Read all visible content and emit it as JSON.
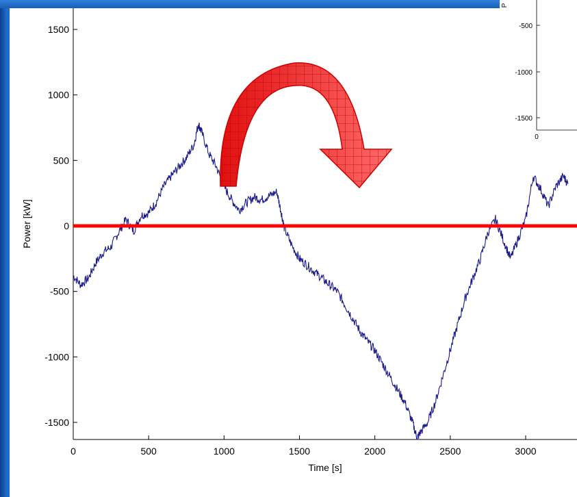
{
  "chart_data": {
    "type": "line",
    "xlabel": "Time [s]",
    "ylabel": "Power [kW]",
    "xlim": [
      0,
      3300
    ],
    "ylim": [
      -1650,
      1650
    ],
    "xticks": [
      0,
      500,
      1000,
      1500,
      2000,
      2500,
      3000
    ],
    "yticks": [
      -1500,
      -1000,
      -500,
      0,
      500,
      1000,
      1500
    ],
    "grid": false,
    "line_color": "#1a1a8c",
    "reference_line": {
      "y": 0,
      "color": "#ff0000"
    },
    "series": [
      {
        "x": [
          0,
          50,
          100,
          150,
          200,
          250,
          300,
          350,
          400,
          450,
          500,
          550,
          600,
          650,
          700,
          750,
          800,
          830,
          850,
          900,
          950,
          1000,
          1050,
          1100,
          1150,
          1200,
          1250,
          1300,
          1350,
          1380,
          1400,
          1450,
          1500,
          1550,
          1600,
          1650,
          1700,
          1750,
          1800,
          1850,
          1900,
          1950,
          2000,
          2050,
          2100,
          2150,
          2200,
          2250,
          2280,
          2300,
          2350,
          2400,
          2450,
          2500,
          2550,
          2600,
          2650,
          2700,
          2750,
          2800,
          2850,
          2900,
          2950,
          3000,
          3050,
          3100,
          3150,
          3200,
          3250,
          3280
        ],
        "y": [
          -380,
          -450,
          -400,
          -280,
          -200,
          -160,
          -50,
          50,
          -40,
          80,
          100,
          180,
          300,
          380,
          450,
          520,
          620,
          780,
          720,
          550,
          450,
          300,
          200,
          120,
          180,
          220,
          200,
          230,
          260,
          100,
          -20,
          -150,
          -250,
          -300,
          -350,
          -400,
          -450,
          -500,
          -600,
          -700,
          -800,
          -880,
          -950,
          -1050,
          -1150,
          -1250,
          -1350,
          -1500,
          -1620,
          -1580,
          -1500,
          -1350,
          -1150,
          -950,
          -750,
          -550,
          -400,
          -250,
          -50,
          50,
          -100,
          -250,
          -100,
          50,
          380,
          280,
          150,
          300,
          380,
          320
        ]
      }
    ],
    "inset": {
      "ytick_labels": [
        "-500",
        "-1000",
        "-1500"
      ],
      "xtick_label": "0",
      "axis_letter": "P"
    },
    "annotation": "red curved arrow",
    "annotation_color": "#ff2a2a"
  }
}
